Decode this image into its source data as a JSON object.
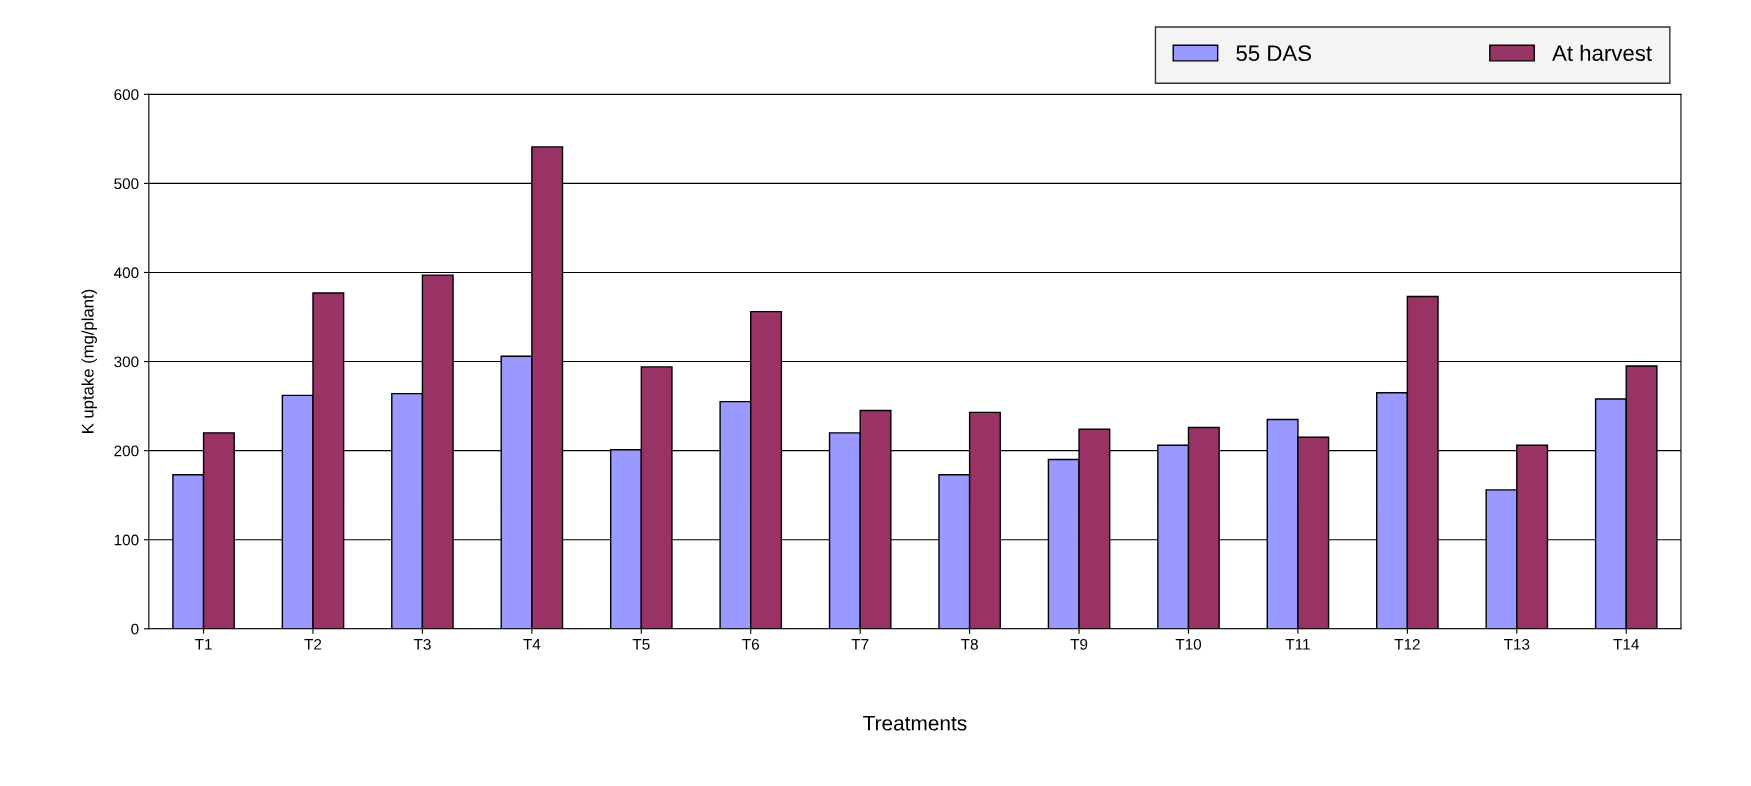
{
  "chart_data": {
    "type": "bar",
    "xlabel": "Treatments",
    "ylabel": "K uptake (mg/plant)",
    "categories": [
      "T1",
      "T2",
      "T3",
      "T4",
      "T5",
      "T6",
      "T7",
      "T8",
      "T9",
      "T10",
      "T11",
      "T12",
      "T13",
      "T14"
    ],
    "series": [
      {
        "name": "55 DAS",
        "color": "#9999ff",
        "values": [
          173,
          262,
          264,
          306,
          201,
          255,
          220,
          173,
          190,
          206,
          235,
          265,
          156,
          258
        ]
      },
      {
        "name": "At harvest",
        "color": "#993366",
        "values": [
          220,
          377,
          397,
          541,
          294,
          356,
          245,
          243,
          224,
          226,
          215,
          373,
          206,
          295
        ]
      }
    ],
    "ylim": [
      0,
      600
    ],
    "yticks": [
      0,
      100,
      200,
      300,
      400,
      500,
      600
    ],
    "grid": "y",
    "legend": "top right"
  }
}
